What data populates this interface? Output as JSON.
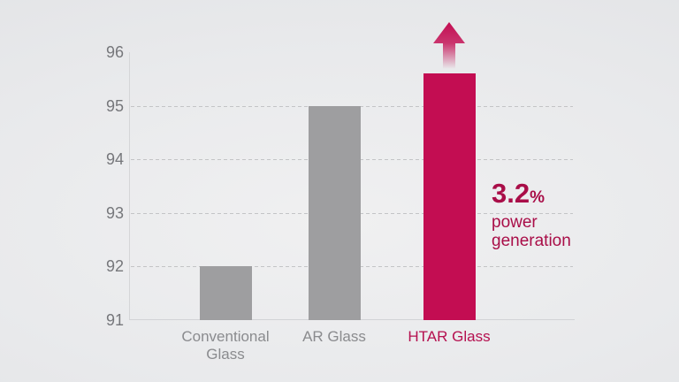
{
  "chart_data": {
    "type": "bar",
    "title": "",
    "xlabel": "",
    "ylabel": "",
    "categories": [
      "Conventional Glass",
      "AR Glass",
      "HTAR Glass"
    ],
    "values": [
      92.0,
      95.0,
      95.6
    ],
    "ylim": [
      91,
      96
    ],
    "yticks": [
      "91",
      "92",
      "93",
      "94",
      "95",
      "96"
    ],
    "grid": "dashed horizontal gridlines at 92, 93, 94, 95; solid baseline at 91; no top line",
    "legend": "none",
    "highlight_index": 2,
    "colors": {
      "bar_default": "#9e9ea0",
      "bar_highlight": "#c30d52",
      "axis": "#d5d6d8",
      "gridline": "#c3c4c6",
      "tick_text": "#76777b",
      "category_text": "#8a8b8e",
      "highlight_text": "#b5104f",
      "annotation_text": "#a90e48"
    },
    "annotation": {
      "value": "3.2",
      "unit": "%",
      "line1": "power",
      "line2": "generation"
    },
    "arrow": "upward arrow above highlighted bar, magenta fading to transparent toward bottom"
  }
}
